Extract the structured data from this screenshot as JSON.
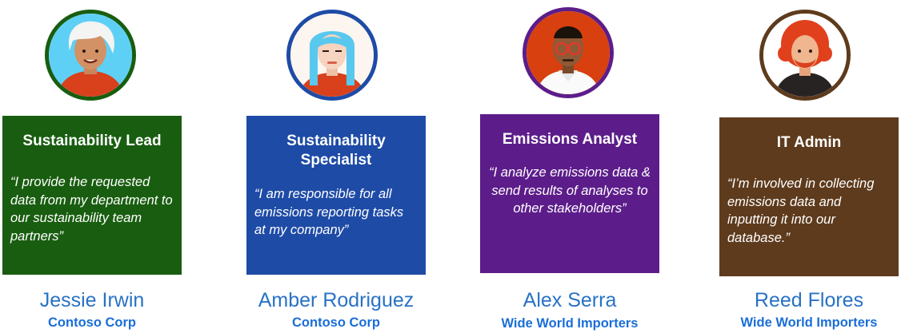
{
  "personas": [
    {
      "role": "Sustainability Lead",
      "quote": "“I provide the requested data from my department to our sustainability team partners”",
      "name": "Jessie Irwin",
      "company": "Contoso Corp",
      "card_color": "#195d10",
      "ring_color": "#195d10"
    },
    {
      "role": "Sustainability Specialist",
      "quote": "“I am responsible for all emissions reporting tasks at my company”",
      "name": "Amber Rodriguez",
      "company": "Contoso Corp",
      "card_color": "#1e4ba6",
      "ring_color": "#1e4ba6"
    },
    {
      "role": "Emissions Analyst",
      "quote": "“I analyze emissions data & send results of analyses to other stakeholders”",
      "name": "Alex Serra",
      "company": "Wide World Importers",
      "card_color": "#5c1d8a",
      "ring_color": "#5c1d8a"
    },
    {
      "role": "IT Admin",
      "quote": "“I’m involved in collecting emissions data and inputting it into our database.”",
      "name": "Reed Flores",
      "company": "Wide World Importers",
      "card_color": "#5e3b1d",
      "ring_color": "#5e3b1d"
    }
  ]
}
